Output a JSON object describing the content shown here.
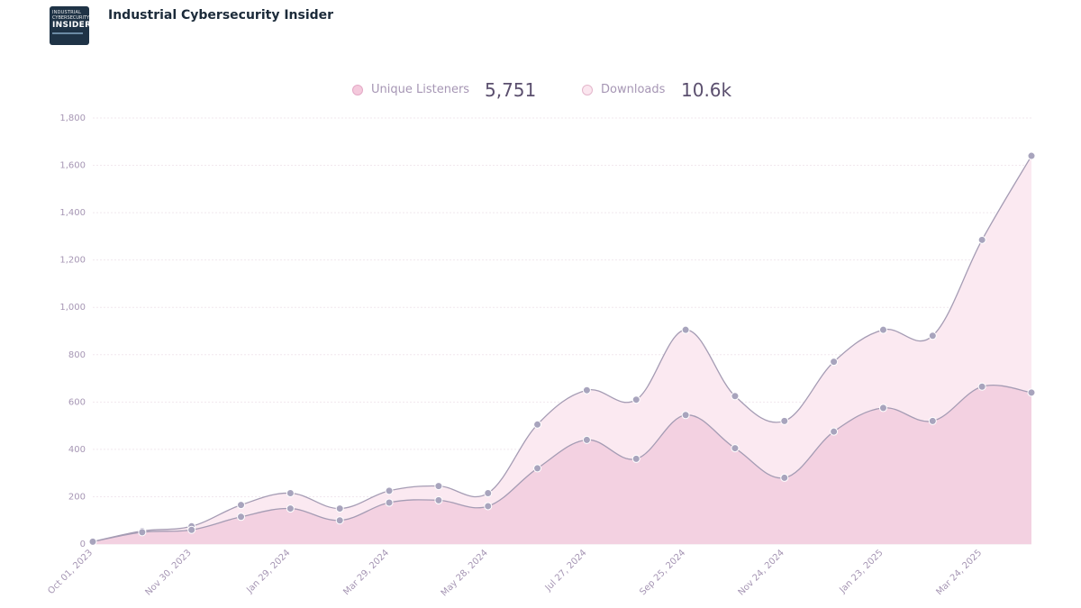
{
  "header": {
    "podcast_title": "Industrial Cybersecurity Insider",
    "logo_text": [
      "INDUSTRIAL",
      "CYBERSECURITY",
      "INSIDER"
    ]
  },
  "legend": [
    {
      "label": "Unique Listeners",
      "value": "5,751",
      "color": "#f4c9dc"
    },
    {
      "label": "Downloads",
      "value": "10.6k",
      "color": "#fbe6ef"
    }
  ],
  "colors": {
    "listeners_fill": "#f3d1e1",
    "downloads_fill": "#fbe9f1",
    "line": "#a59cb4",
    "point": "#a8a4bd",
    "grid": "#f1e7ee"
  },
  "chart_data": {
    "type": "area",
    "x": [
      "Oct 01, 2023",
      "",
      "Nov 30, 2023",
      "",
      "Jan 29, 2024",
      "",
      "Mar 29, 2024",
      "",
      "May 28, 2024",
      "",
      "Jul 27, 2024",
      "",
      "Sep 25, 2024",
      "",
      "Nov 24, 2024",
      "",
      "Jan 23, 2025",
      "",
      "Mar 24, 2025",
      ""
    ],
    "series": [
      {
        "name": "Unique Listeners",
        "values": [
          10,
          50,
          60,
          115,
          150,
          100,
          175,
          185,
          160,
          320,
          440,
          360,
          545,
          405,
          280,
          475,
          575,
          520,
          665,
          640
        ]
      },
      {
        "name": "Downloads",
        "values": [
          10,
          55,
          75,
          165,
          215,
          150,
          225,
          245,
          215,
          505,
          650,
          610,
          905,
          625,
          520,
          770,
          905,
          880,
          1285,
          1640
        ]
      }
    ],
    "yticks": [
      "0",
      "200",
      "400",
      "600",
      "800",
      "1,000",
      "1,200",
      "1,400",
      "1,600",
      "1,800"
    ],
    "ylim": [
      0,
      1800
    ],
    "grid": true
  }
}
